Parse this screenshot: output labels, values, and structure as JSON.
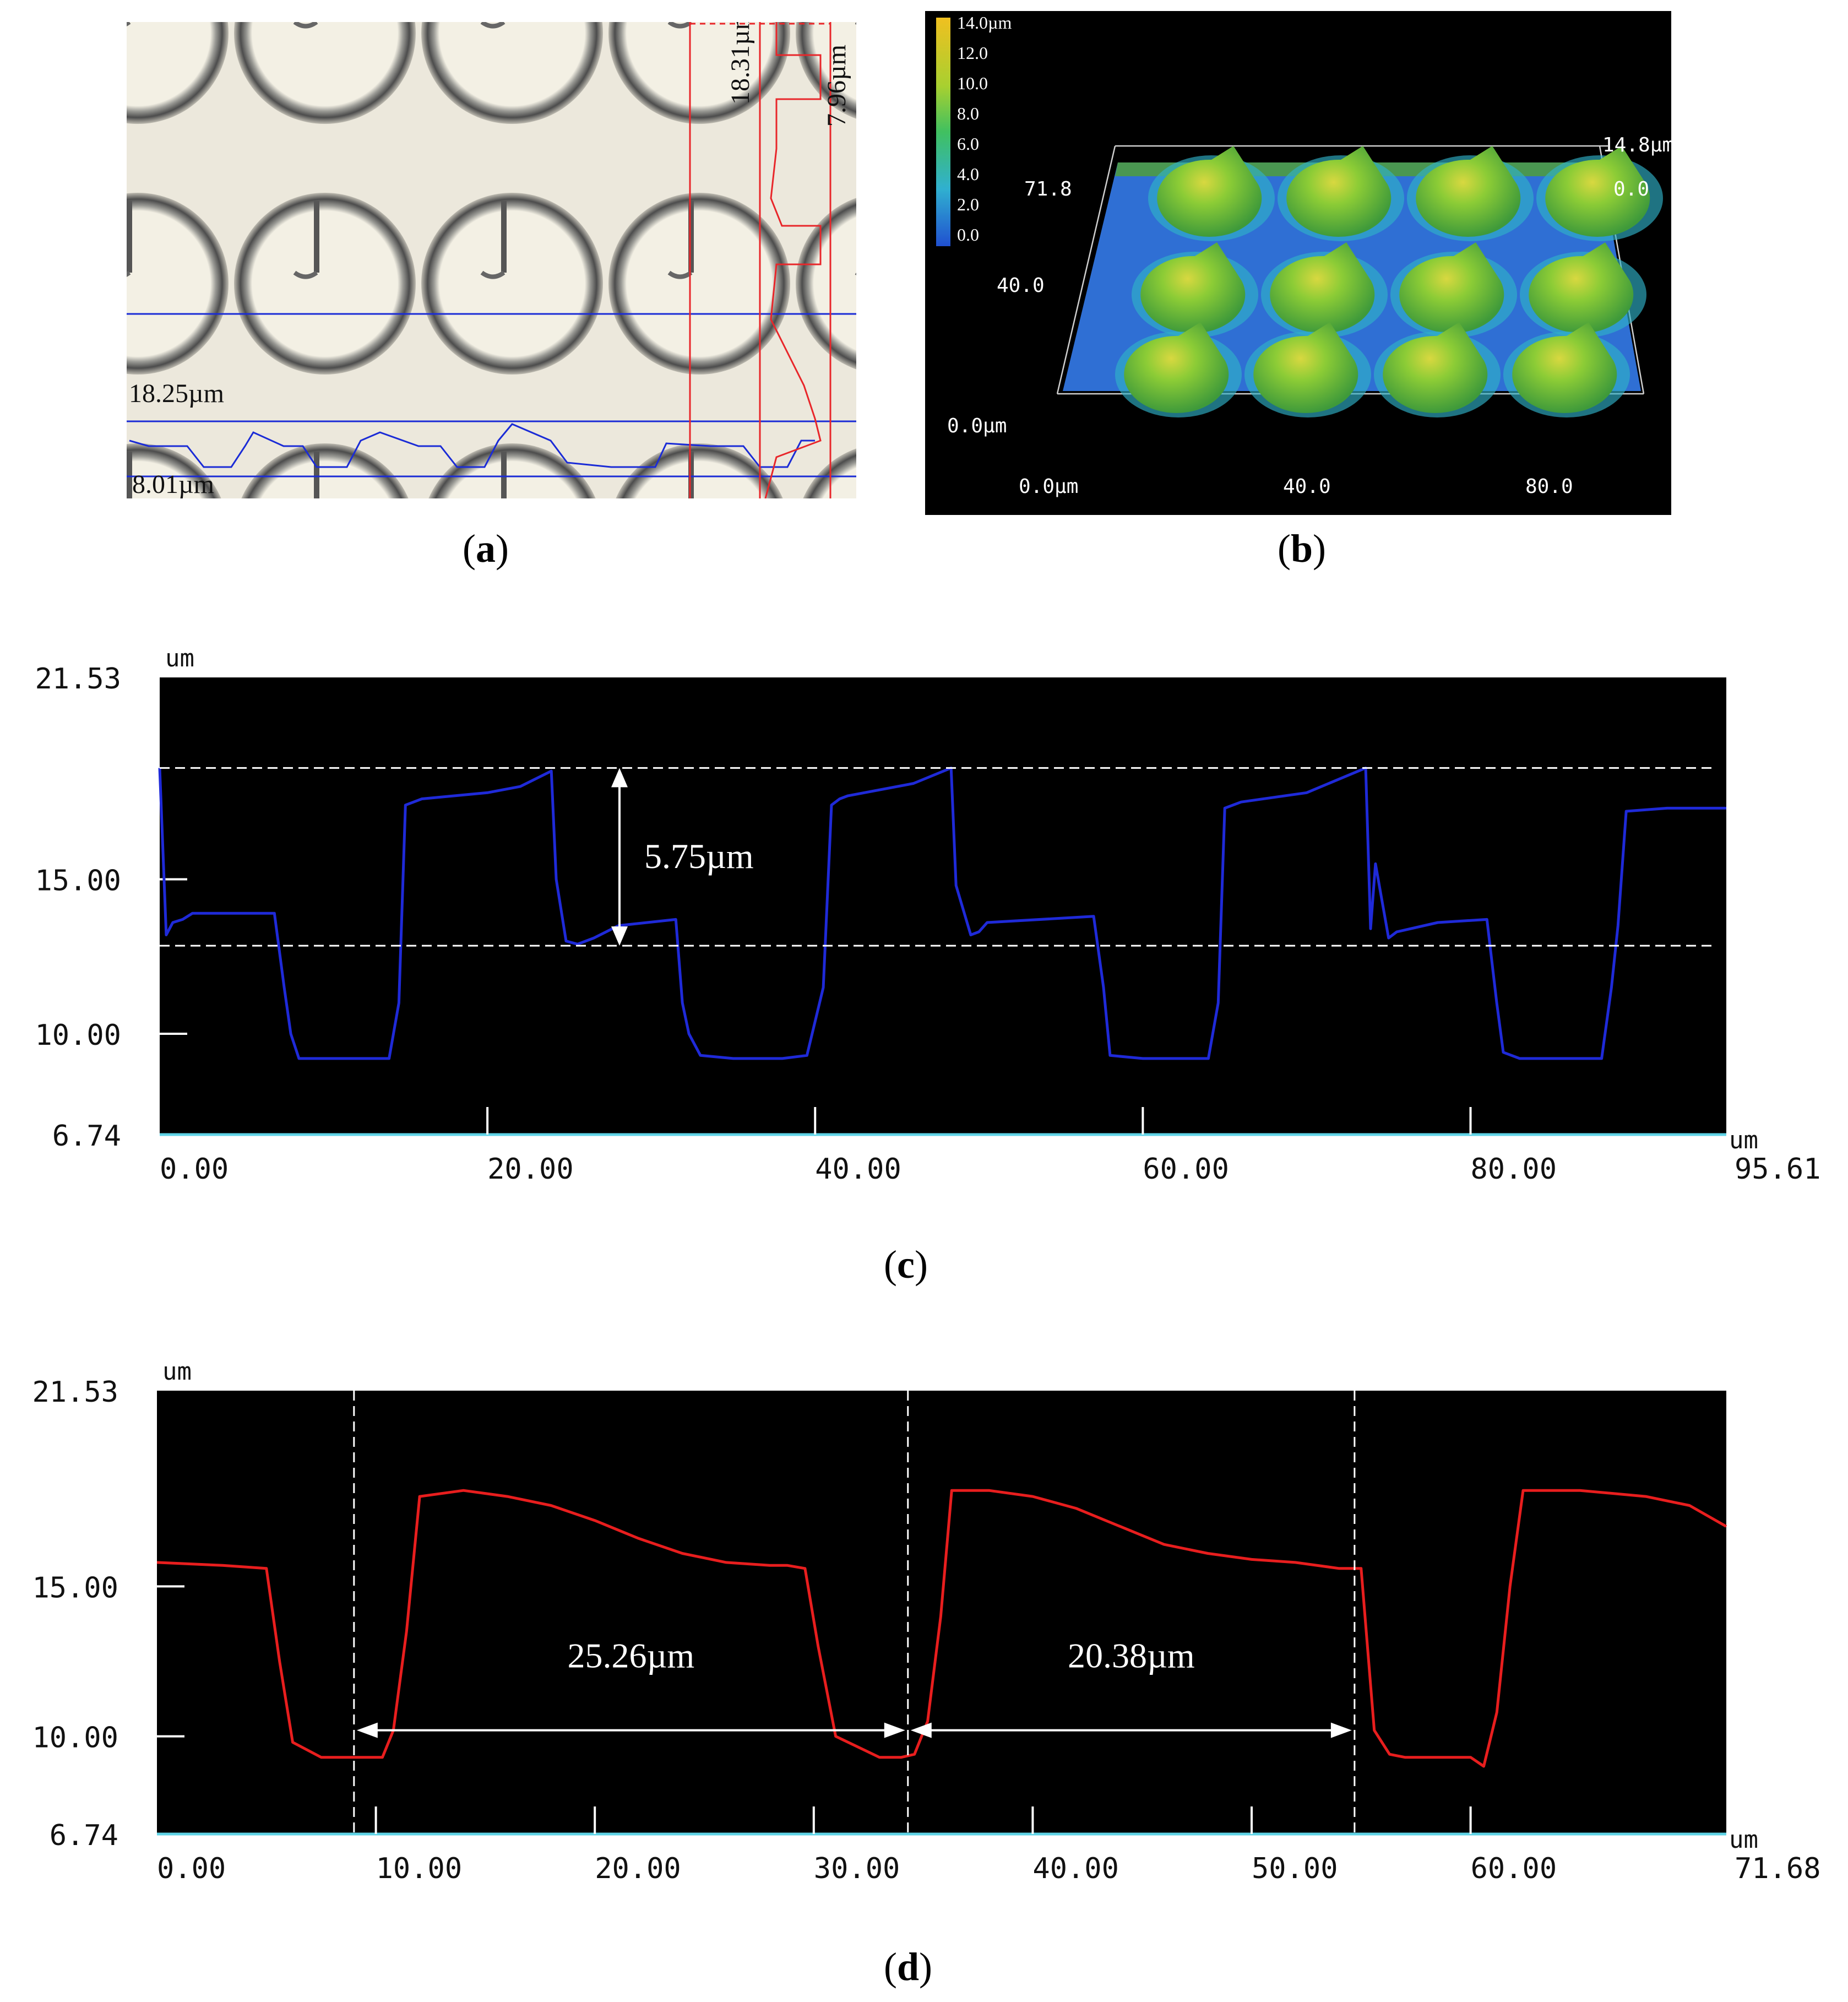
{
  "panel_a": {
    "caption_letter": "a",
    "labels": {
      "top_blue": "18.25µm",
      "bottom_blue": "8.01µm",
      "red_left": "18.31µm",
      "red_right": "7.96µm"
    },
    "colors": {
      "blue": "#1a2bd6",
      "red": "#e8262a",
      "background": "#ece8dc",
      "ring": "#6f6f6f"
    }
  },
  "panel_b": {
    "caption_letter": "b",
    "colorbar": [
      "14.0µm",
      "12.0",
      "10.0",
      "8.0",
      "6.0",
      "4.0",
      "2.0",
      "0.0"
    ],
    "y_labels": [
      "71.8",
      "40.0",
      "0.0µm"
    ],
    "x_labels": [
      "0.0µm",
      "40.0",
      "80.0"
    ],
    "z_labels": [
      "14.8µm",
      "0.0"
    ],
    "colors": {
      "base": "#2e6fd6",
      "peak": "#7ac93a",
      "top": "#e8d020"
    }
  },
  "chart_data": [
    {
      "type": "line",
      "id": "c",
      "caption_letter": "c",
      "y_unit": "um",
      "x_unit": "um",
      "ylim": [
        6.74,
        21.53
      ],
      "xlim": [
        0,
        95.61
      ],
      "y_ticks": [
        "21.53",
        "15.00",
        "10.00",
        "6.74"
      ],
      "x_ticks": [
        "0.00",
        "20.00",
        "40.00",
        "60.00",
        "80.00",
        "95.61"
      ],
      "annotation": "5.75µm",
      "dashed_levels": [
        18.6,
        12.85
      ],
      "color": "#1f2ad8",
      "series": [
        {
          "x": [
            0,
            0.4,
            0.8,
            1.4,
            2,
            7,
            7.6,
            8,
            8.5,
            10,
            14,
            14.6,
            15,
            16,
            20,
            22,
            23.9,
            24.2,
            24.8,
            25.5,
            26.5,
            28,
            31.5,
            31.9,
            32.3,
            33,
            35,
            38,
            39.5,
            40.5,
            41,
            41.5,
            42,
            46,
            48.3,
            48.6,
            49.5,
            50,
            50.5,
            57,
            57.6,
            58,
            60,
            64,
            64.6,
            65,
            66,
            70,
            73.6,
            73.9,
            74.2,
            75,
            75.5,
            78,
            81,
            81.6,
            82,
            83,
            86,
            88,
            88.6,
            89,
            89.5,
            92,
            95.61
          ],
          "y": [
            18.6,
            13.2,
            13.6,
            13.7,
            13.9,
            13.9,
            11.5,
            10.0,
            9.2,
            9.2,
            9.2,
            11.0,
            17.4,
            17.6,
            17.8,
            18.0,
            18.5,
            15.0,
            13.0,
            12.9,
            13.1,
            13.5,
            13.7,
            11.0,
            10.0,
            9.3,
            9.2,
            9.2,
            9.3,
            11.5,
            17.4,
            17.6,
            17.7,
            18.1,
            18.6,
            14.8,
            13.2,
            13.3,
            13.6,
            13.8,
            11.5,
            9.3,
            9.2,
            9.2,
            11.0,
            17.3,
            17.5,
            17.8,
            18.6,
            13.4,
            15.5,
            13.1,
            13.3,
            13.6,
            13.7,
            11.0,
            9.4,
            9.2,
            9.2,
            9.2,
            11.5,
            13.5,
            17.2,
            17.3,
            17.3
          ]
        }
      ]
    },
    {
      "type": "line",
      "id": "d",
      "caption_letter": "d",
      "y_unit": "um",
      "x_unit": "um",
      "ylim": [
        6.74,
        21.53
      ],
      "xlim": [
        0,
        71.68
      ],
      "y_ticks": [
        "21.53",
        "15.00",
        "10.00",
        "6.74"
      ],
      "x_ticks": [
        "0.00",
        "10.00",
        "20.00",
        "30.00",
        "40.00",
        "50.00",
        "60.00",
        "71.68"
      ],
      "annotations": [
        "25.26µm",
        "20.38µm"
      ],
      "dashed_x": [
        9.0,
        34.3,
        54.7
      ],
      "color": "#e81e1e",
      "series": [
        {
          "x": [
            0,
            3,
            5,
            5.6,
            6.2,
            7.5,
            10,
            10.3,
            10.8,
            11.4,
            12,
            14,
            16,
            18,
            20,
            22,
            24,
            26,
            28,
            28.8,
            29.6,
            30.2,
            31,
            33,
            34.0,
            34.6,
            35.2,
            35.8,
            36.3,
            38,
            40,
            42,
            44,
            46,
            48,
            50,
            52,
            54,
            55,
            55.6,
            56.3,
            57,
            59,
            60,
            60.6,
            61.2,
            61.8,
            62.4,
            65,
            68,
            70,
            71.68
          ],
          "y": [
            15.8,
            15.7,
            15.6,
            12.5,
            9.8,
            9.3,
            9.3,
            9.3,
            10.2,
            13.5,
            18.0,
            18.2,
            18.0,
            17.7,
            17.2,
            16.6,
            16.1,
            15.8,
            15.7,
            15.7,
            15.6,
            13.0,
            10.0,
            9.3,
            9.3,
            9.4,
            10.5,
            14.0,
            18.2,
            18.2,
            18.0,
            17.6,
            17.0,
            16.4,
            16.1,
            15.9,
            15.8,
            15.6,
            15.6,
            10.2,
            9.4,
            9.3,
            9.3,
            9.3,
            9.0,
            10.8,
            15.0,
            18.2,
            18.2,
            18.0,
            17.7,
            17.0
          ]
        }
      ]
    }
  ]
}
